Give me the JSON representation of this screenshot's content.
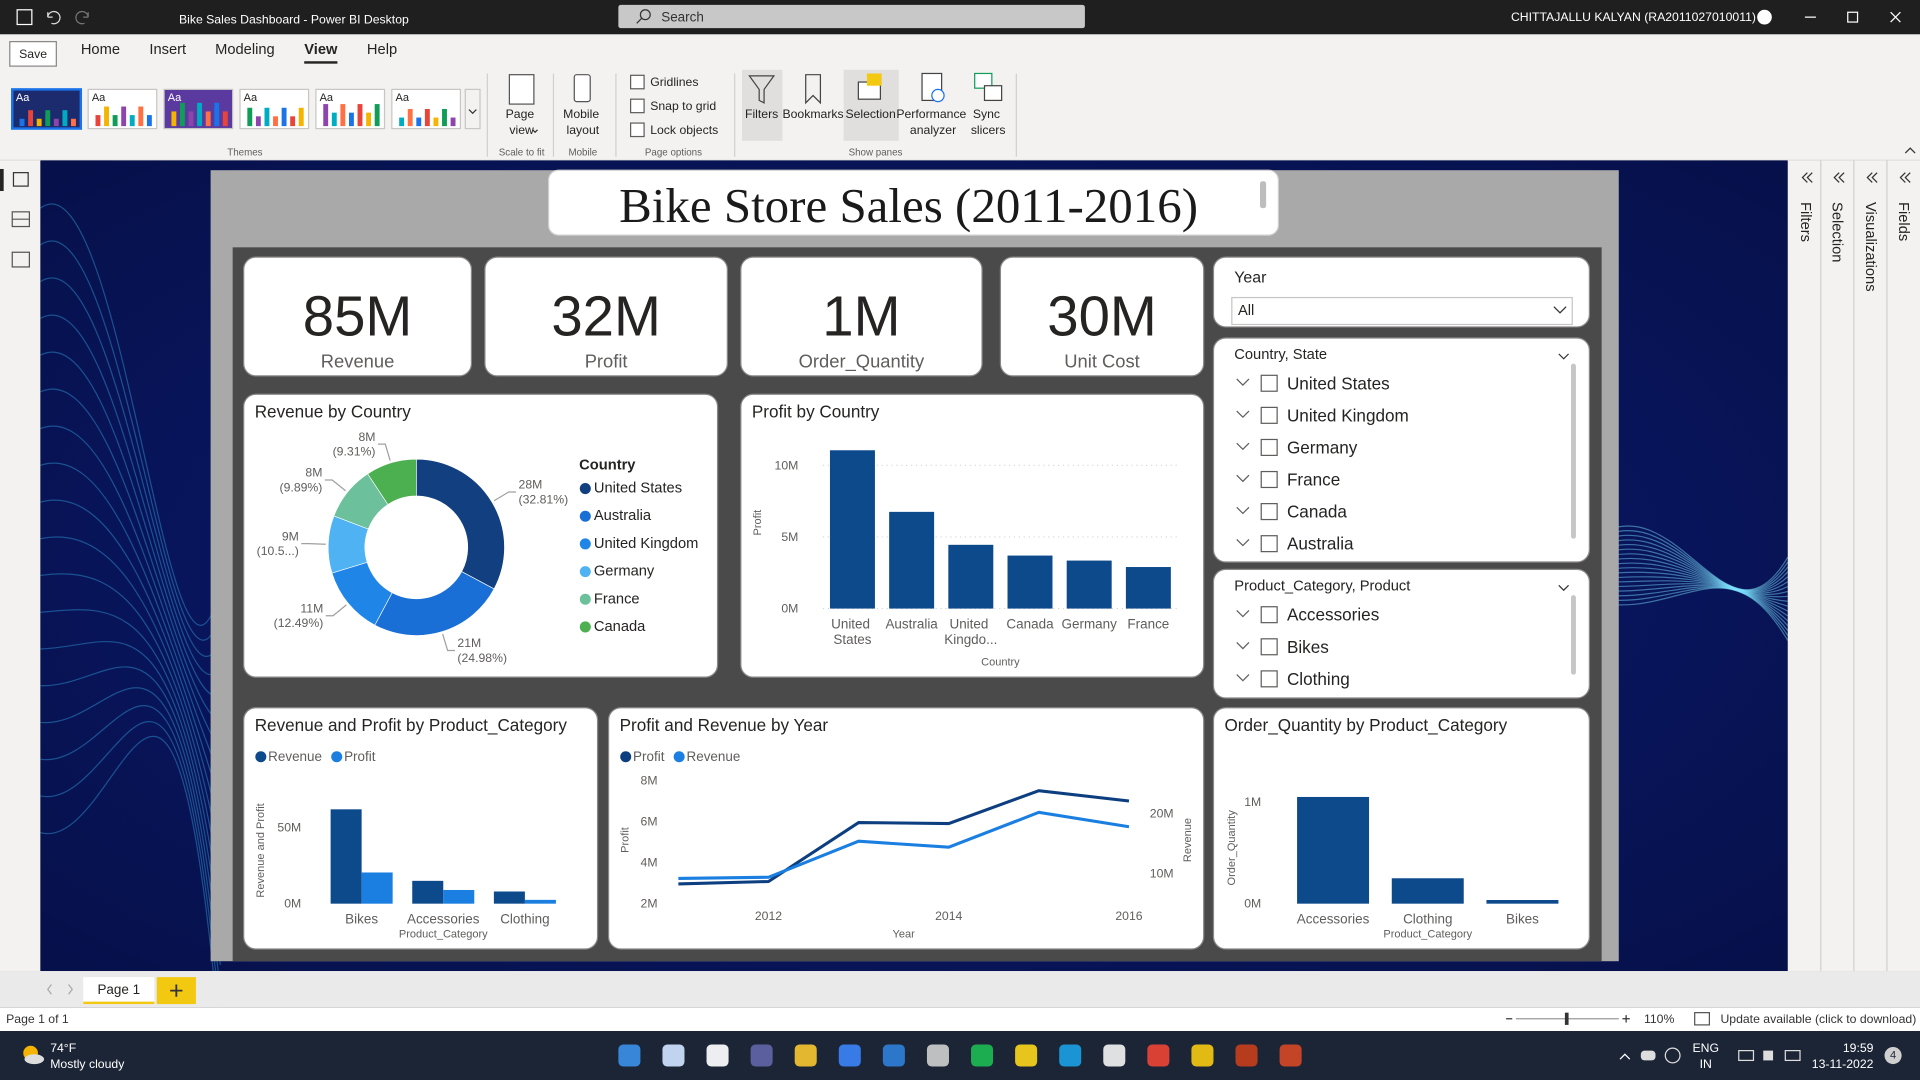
{
  "app": {
    "save_tooltip": "Save",
    "window_title": "Bike Sales Dashboard - Power BI Desktop",
    "search": "Search",
    "user": "CHITTAJALLU KALYAN (RA2011027010011)"
  },
  "ribbon": {
    "tabs": [
      "Home",
      "Insert",
      "Modeling",
      "View",
      "Help"
    ],
    "active_tab": 3,
    "themes": [
      "Aa",
      "Aa",
      "Aa",
      "Aa",
      "Aa",
      "Aa"
    ],
    "page_view": "Page view",
    "mobile_layout": "Mobile layout",
    "page_options": [
      "Gridlines",
      "Snap to grid",
      "Lock objects"
    ],
    "panes": [
      "Filters",
      "Bookmarks",
      "Selection",
      "Performance analyzer",
      "Sync slicers"
    ],
    "groups": [
      "Themes",
      "Scale to fit",
      "Mobile",
      "Page options",
      "Show panes"
    ]
  },
  "side_panes": [
    "Filters",
    "Selection",
    "Visualizations",
    "Fields"
  ],
  "report": {
    "title": "Bike Store Sales (2011-2016)",
    "cards": [
      {
        "value": "85M",
        "label": "Revenue"
      },
      {
        "value": "32M",
        "label": "Profit"
      },
      {
        "value": "1M",
        "label": "Order_Quantity"
      },
      {
        "value": "30M",
        "label": "Unit Cost"
      }
    ],
    "slicers": [
      {
        "title": "Year",
        "value": "All"
      },
      {
        "title": "Country, State",
        "items": [
          "United States",
          "United Kingdom",
          "Germany",
          "France",
          "Canada",
          "Australia"
        ]
      },
      {
        "title": "Product_Category, Product",
        "items": [
          "Accessories",
          "Bikes",
          "Clothing"
        ]
      }
    ]
  },
  "charts": [
    {
      "type": "donut",
      "title": "Revenue by Country",
      "legend_title": "Country",
      "categories": [
        "United States",
        "Australia",
        "United Kingdom",
        "Germany",
        "France",
        "Canada"
      ],
      "values": [
        32.81,
        24.98,
        12.49,
        10.5,
        9.89,
        9.31
      ],
      "value_labels": [
        "(32.81%)",
        "(24.98%)",
        "(12.49%)",
        "(10.5...)",
        "(9.89%)",
        "(9.31%)"
      ],
      "amounts": [
        28,
        21,
        11,
        9,
        8,
        8
      ],
      "amount_labels": [
        "28M",
        "21M",
        "11M",
        "9M",
        "8M",
        "8M"
      ],
      "colors": [
        "#123f7f",
        "#1a6fd6",
        "#1f86e8",
        "#4fb2f3",
        "#6cc09c",
        "#4caf50"
      ]
    },
    {
      "type": "bar",
      "title": "Profit by Country",
      "categories": [
        "United States",
        "Australia",
        "United Kingdo...",
        "Canada",
        "Germany",
        "France"
      ],
      "values": [
        11.05,
        6.75,
        4.45,
        3.7,
        3.35,
        2.9
      ],
      "color": "#0d4a8c",
      "ylim": [
        0,
        12
      ],
      "yticks": [
        {
          "value": 0,
          "label": "0M"
        },
        {
          "value": 5,
          "label": "5M"
        },
        {
          "value": 10,
          "label": "10M"
        }
      ],
      "y_label": "Profit",
      "x_label": "Country",
      "grid": true
    },
    {
      "type": "grouped_bar",
      "title": "Revenue and Profit by Product_Category",
      "categories": [
        "Bikes",
        "Accessories",
        "Clothing"
      ],
      "series": [
        {
          "name": "Revenue",
          "color": "#0d4a8c",
          "values": [
            62,
            15,
            8
          ]
        },
        {
          "name": "Profit",
          "color": "#1a7fe0",
          "values": [
            20.5,
            9,
            2.5
          ]
        }
      ],
      "ylim": [
        0,
        70
      ],
      "yticks": [
        {
          "value": 0,
          "label": "0M"
        },
        {
          "value": 50,
          "label": "50M"
        }
      ],
      "y_label": "Revenue and Profit",
      "x_label": "Product_Category",
      "grid": false
    },
    {
      "type": "line",
      "title": "Profit and Revenue by Year",
      "x": [
        2011,
        2012,
        2013,
        2014,
        2015,
        2016
      ],
      "xlim": [
        2011,
        2016
      ],
      "xticks": [
        2012,
        2014,
        2016
      ],
      "series": [
        {
          "name": "Profit",
          "color": "#0d3f80",
          "values": [
            2.96,
            3.08,
            5.95,
            5.9,
            7.5,
            7.0
          ]
        },
        {
          "name": "Revenue",
          "color": "#1a7fe0",
          "axis": "y2",
          "values": [
            9.2,
            9.4,
            15.4,
            14.4,
            20.2,
            17.8
          ]
        }
      ],
      "ylim": [
        2,
        8.2
      ],
      "yticks": [
        {
          "value": 2,
          "label": "2M"
        },
        {
          "value": 4,
          "label": "4M"
        },
        {
          "value": 6,
          "label": "6M"
        },
        {
          "value": 8,
          "label": "8M"
        }
      ],
      "y2lim": [
        5,
        26.2
      ],
      "y2ticks": [
        {
          "value": 10,
          "label": "10M"
        },
        {
          "value": 20,
          "label": "20M"
        }
      ],
      "y_label": "Profit",
      "y2_label": "Revenue",
      "x_label": "Year",
      "grid": false
    },
    {
      "type": "bar",
      "title": "Order_Quantity by Product_Category",
      "categories": [
        "Accessories",
        "Clothing",
        "Bikes"
      ],
      "values": [
        1.05,
        0.25,
        0.036
      ],
      "color": "#0d4a8c",
      "ylim": [
        0,
        1.1
      ],
      "yticks": [
        {
          "value": 0,
          "label": "0M"
        },
        {
          "value": 1,
          "label": "1M"
        }
      ],
      "y_label": "Order_Quantity",
      "x_label": "Product_Category",
      "grid": false
    }
  ],
  "status": {
    "page_tab": "Page 1",
    "page_count": "Page 1 of 1",
    "zoom": "110%",
    "update": "Update available (click to download)"
  },
  "taskbar": {
    "temperature": "74°F",
    "weather": "Mostly cloudy",
    "language": "ENG",
    "region": "IN",
    "time": "19:59",
    "date": "13-11-2022",
    "notifications": 4
  }
}
